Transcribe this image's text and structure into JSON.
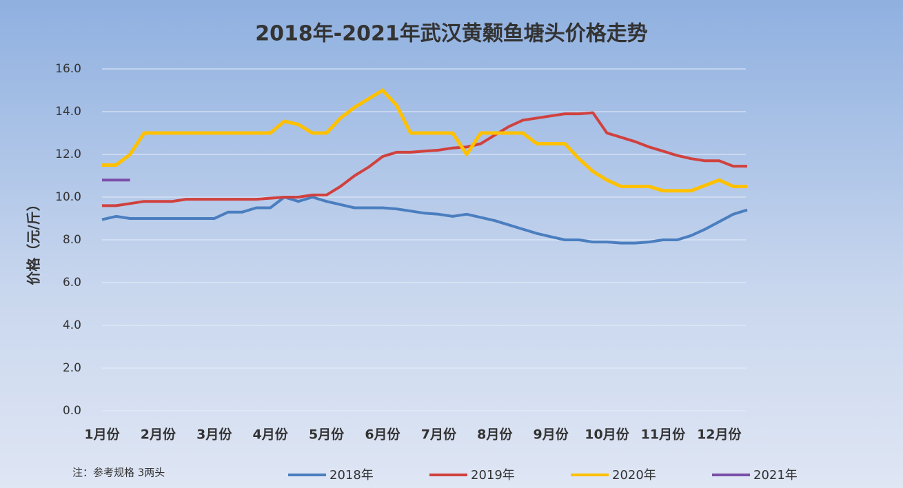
{
  "chart_data": {
    "type": "line",
    "title": "2018年-2021年武汉黄颡鱼塘头价格走势",
    "y_label": "价格（元/斤）",
    "note": "注：参考规格  3两头",
    "categories": [
      "1月份",
      null,
      null,
      null,
      "2月份",
      null,
      null,
      null,
      "3月份",
      null,
      null,
      null,
      "4月份",
      null,
      null,
      null,
      "5月份",
      null,
      null,
      null,
      "6月份",
      null,
      null,
      null,
      "7月份",
      null,
      null,
      null,
      "8月份",
      null,
      null,
      null,
      "9月份",
      null,
      null,
      null,
      "10月份",
      null,
      null,
      null,
      "11月份",
      null,
      null,
      null,
      "12月份",
      null,
      null
    ],
    "series": [
      {
        "name": "2018年",
        "color": "#4a7ebf",
        "values": [
          8.95,
          9.1,
          9.0,
          9.0,
          9.0,
          9.0,
          9.0,
          9.0,
          9.0,
          9.3,
          9.3,
          9.5,
          9.5,
          10.0,
          9.8,
          10.0,
          9.8,
          9.65,
          9.5,
          9.5,
          9.5,
          9.45,
          9.35,
          9.25,
          9.2,
          9.1,
          9.2,
          9.05,
          8.9,
          8.7,
          8.5,
          8.3,
          8.15,
          8.0,
          8.0,
          7.9,
          7.9,
          7.85,
          7.85,
          7.9,
          8.0,
          8.0,
          8.2,
          8.5,
          8.85,
          9.2,
          9.4
        ]
      },
      {
        "name": "2019年",
        "color": "#d0413e",
        "values": [
          9.6,
          9.6,
          9.7,
          9.8,
          9.8,
          9.8,
          9.9,
          9.9,
          9.9,
          9.9,
          9.9,
          9.9,
          9.95,
          10.0,
          10.0,
          10.1,
          10.1,
          10.5,
          11.0,
          11.4,
          11.9,
          12.1,
          12.1,
          12.15,
          12.2,
          12.3,
          12.35,
          12.5,
          12.9,
          13.3,
          13.6,
          13.7,
          13.8,
          13.9,
          13.9,
          13.95,
          13.0,
          12.8,
          12.6,
          12.35,
          12.15,
          11.95,
          11.8,
          11.7,
          11.7,
          11.45,
          11.45
        ]
      },
      {
        "name": "2020年",
        "color": "#ffc000",
        "values": [
          11.5,
          11.5,
          12.0,
          13.0,
          13.0,
          13.0,
          13.0,
          13.0,
          13.0,
          13.0,
          13.0,
          13.0,
          13.0,
          13.55,
          13.4,
          13.0,
          13.0,
          13.7,
          14.2,
          14.6,
          15.0,
          14.3,
          13.0,
          13.0,
          13.0,
          13.0,
          12.0,
          13.0,
          13.0,
          13.0,
          13.0,
          12.5,
          12.5,
          12.5,
          11.8,
          11.2,
          10.8,
          10.5,
          10.5,
          10.5,
          10.3,
          10.3,
          10.3,
          10.55,
          10.8,
          10.5,
          10.5
        ]
      },
      {
        "name": "2021年",
        "color": "#7a4ea8",
        "values": [
          10.8,
          10.8,
          10.8,
          null,
          null,
          null,
          null,
          null,
          null,
          null,
          null,
          null,
          null,
          null,
          null,
          null,
          null,
          null,
          null,
          null,
          null,
          null,
          null,
          null,
          null,
          null,
          null,
          null,
          null,
          null,
          null,
          null,
          null,
          null,
          null,
          null,
          null,
          null,
          null,
          null,
          null,
          null,
          null,
          null,
          null,
          null,
          null
        ]
      }
    ],
    "ylim": [
      0,
      16
    ],
    "yticks": [
      {
        "value": 0,
        "label": "0.0"
      },
      {
        "value": 2,
        "label": "2.0"
      },
      {
        "value": 4,
        "label": "4.0"
      },
      {
        "value": 6,
        "label": "6.0"
      },
      {
        "value": 8,
        "label": "8.0"
      },
      {
        "value": 10,
        "label": "10.0"
      },
      {
        "value": 12,
        "label": "12.0"
      },
      {
        "value": 14,
        "label": "14.0"
      },
      {
        "value": 16,
        "label": "16.0"
      }
    ],
    "grid": true
  }
}
